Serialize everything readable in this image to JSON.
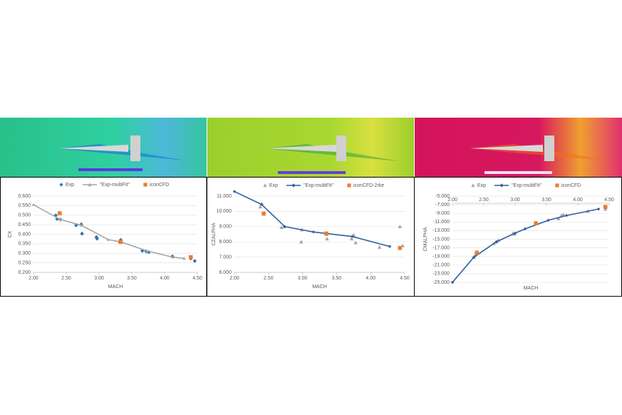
{
  "chart_data": [
    {
      "type": "scatter",
      "y_label": "CX",
      "x_label": "MACH",
      "grid": true,
      "xlim": [
        2.0,
        4.5
      ],
      "ylim": [
        0.2,
        0.6
      ],
      "xticks": [
        {
          "value": 2.0,
          "label": "2.00"
        },
        {
          "value": 2.5,
          "label": "2.50"
        },
        {
          "value": 3.0,
          "label": "3.00"
        },
        {
          "value": 3.5,
          "label": "3.50"
        },
        {
          "value": 4.0,
          "label": "4.00"
        },
        {
          "value": 4.5,
          "label": "4.50"
        }
      ],
      "yticks": [
        {
          "value": 0.6,
          "label": "0.600"
        },
        {
          "value": 0.55,
          "label": "0.550"
        },
        {
          "value": 0.5,
          "label": "0.500"
        },
        {
          "value": 0.45,
          "label": "0.450"
        },
        {
          "value": 0.4,
          "label": "0.400"
        },
        {
          "value": 0.35,
          "label": "0.350"
        },
        {
          "value": 0.3,
          "label": "0.300"
        },
        {
          "value": 0.25,
          "label": "0.250"
        },
        {
          "value": 0.2,
          "label": "0.200"
        }
      ],
      "series": [
        {
          "name": "Exp",
          "color": "#2e75b6",
          "marker": "diamond",
          "line": false,
          "x": [
            2.34,
            2.36,
            2.41,
            2.65,
            2.73,
            2.74,
            2.96,
            2.97,
            3.32,
            3.33,
            3.66,
            3.72,
            3.76,
            4.12,
            4.4,
            4.46
          ],
          "values": [
            0.499,
            0.48,
            0.477,
            0.447,
            0.452,
            0.403,
            0.385,
            0.377,
            0.357,
            0.37,
            0.313,
            0.31,
            0.306,
            0.284,
            0.273,
            0.26
          ]
        },
        {
          "name": "\"Exp-multiFit\"",
          "color": "#a5a5a5",
          "marker": "triangle",
          "line": true,
          "x": [
            2.0,
            2.41,
            2.73,
            3.14,
            3.33,
            3.73,
            4.12,
            4.3
          ],
          "values": [
            0.555,
            0.477,
            0.447,
            0.372,
            0.36,
            0.313,
            0.28,
            0.273
          ]
        },
        {
          "name": "iconCFD",
          "color": "#ed7d31",
          "marker": "square",
          "line": false,
          "x": [
            2.4,
            3.33,
            4.4
          ],
          "values": [
            0.51,
            0.36,
            0.28
          ]
        }
      ]
    },
    {
      "type": "scatter",
      "y_label": "CZALPHA",
      "x_label": "MACH",
      "grid": true,
      "xlim": [
        2.0,
        4.5
      ],
      "ylim": [
        6.0,
        11.0
      ],
      "xticks": [
        {
          "value": 2.0,
          "label": "2.00"
        },
        {
          "value": 2.5,
          "label": "2.50"
        },
        {
          "value": 3.0,
          "label": "3.00"
        },
        {
          "value": 3.5,
          "label": "3.50"
        },
        {
          "value": 4.0,
          "label": "4.00"
        },
        {
          "value": 4.5,
          "label": "4.50"
        }
      ],
      "yticks": [
        {
          "value": 11.0,
          "label": "11.000"
        },
        {
          "value": 10.0,
          "label": "10.000"
        },
        {
          "value": 9.0,
          "label": "9.000"
        },
        {
          "value": 8.0,
          "label": "8.000"
        },
        {
          "value": 7.0,
          "label": "7.000"
        },
        {
          "value": 6.0,
          "label": "6.000"
        }
      ],
      "series": [
        {
          "name": "Exp",
          "color": "#a5a5a5",
          "marker": "triangle",
          "line": false,
          "x": [
            2.38,
            2.4,
            2.69,
            2.73,
            2.99,
            2.98,
            3.35,
            3.36,
            3.72,
            3.75,
            3.78,
            4.13,
            4.43,
            4.47
          ],
          "values": [
            10.3,
            10.5,
            8.95,
            9.0,
            8.8,
            8.0,
            8.5,
            8.2,
            8.2,
            8.45,
            7.95,
            7.65,
            9.0,
            7.75
          ]
        },
        {
          "name": "\"Exp-multiFit\"",
          "color": "#2e5f9e",
          "marker": "diamond",
          "line": true,
          "x": [
            2.0,
            2.4,
            2.74,
            3.16,
            3.35,
            3.73,
            4.28
          ],
          "values": [
            11.3,
            10.45,
            9.0,
            8.65,
            8.55,
            8.35,
            7.7
          ]
        },
        {
          "name": "iconCFD-2rke",
          "color": "#ed7d31",
          "marker": "square",
          "line": false,
          "x": [
            2.43,
            3.35,
            4.43
          ],
          "values": [
            9.85,
            8.55,
            7.6
          ]
        }
      ]
    },
    {
      "type": "scatter",
      "y_label": "CMALPHA",
      "x_label": "MACH",
      "grid": true,
      "xlim": [
        2.0,
        4.5
      ],
      "ylim": [
        -25.0,
        -5.0
      ],
      "xticks": [
        {
          "value": 2.0,
          "label": "2.00"
        },
        {
          "value": 2.5,
          "label": "2.50"
        },
        {
          "value": 3.0,
          "label": "3.00"
        },
        {
          "value": 3.5,
          "label": "3.50"
        },
        {
          "value": 4.0,
          "label": "4.00"
        },
        {
          "value": 4.5,
          "label": "4.50"
        }
      ],
      "yticks": [
        {
          "value": -5.0,
          "label": "-5.000"
        },
        {
          "value": -7.0,
          "label": "-7.000"
        },
        {
          "value": -9.0,
          "label": "-9.000"
        },
        {
          "value": -11.0,
          "label": "-11.000"
        },
        {
          "value": -13.0,
          "label": "-13.000"
        },
        {
          "value": -15.0,
          "label": "-15.000"
        },
        {
          "value": -17.0,
          "label": "-17.000"
        },
        {
          "value": -19.0,
          "label": "-19.000"
        },
        {
          "value": -21.0,
          "label": "-21.000"
        },
        {
          "value": -23.0,
          "label": "-23.000"
        },
        {
          "value": -25.0,
          "label": "-25.000"
        }
      ],
      "series": [
        {
          "name": "Exp",
          "color": "#a5a5a5",
          "marker": "triangle",
          "line": false,
          "x": [
            2.34,
            2.36,
            2.66,
            2.7,
            2.73,
            2.97,
            2.99,
            3.33,
            3.69,
            3.74,
            3.77,
            4.16,
            4.44
          ],
          "values": [
            -19.2,
            -18.7,
            -16.0,
            -15.6,
            -15.3,
            -13.6,
            -13.8,
            -11.3,
            -10.2,
            -9.5,
            -9.3,
            -8.5,
            -8.0
          ]
        },
        {
          "name": "\"Exp-multiFit\"",
          "color": "#2e5f9e",
          "marker": "diamond",
          "line": true,
          "x": [
            2.0,
            2.34,
            2.7,
            3.0,
            3.16,
            3.53,
            3.82,
            4.33
          ],
          "values": [
            -25.0,
            -19.2,
            -15.6,
            -13.6,
            -12.6,
            -10.6,
            -9.5,
            -8.0
          ]
        },
        {
          "name": "iconCFD",
          "color": "#ed7d31",
          "marker": "square",
          "line": false,
          "x": [
            2.39,
            3.33,
            4.44
          ],
          "values": [
            -18.1,
            -11.3,
            -7.5
          ]
        }
      ]
    }
  ]
}
